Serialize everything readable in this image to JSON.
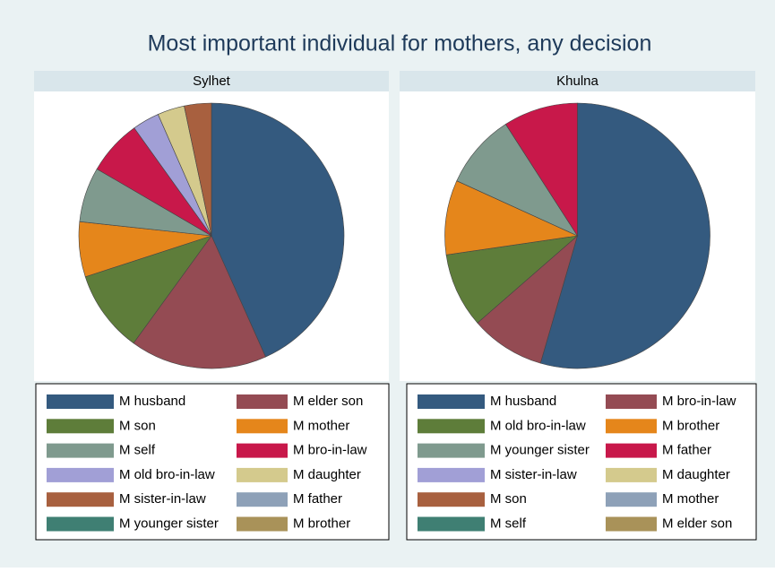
{
  "title": "Most important individual for mothers, any decision",
  "chart_data": [
    {
      "type": "pie",
      "title": "Sylhet",
      "categories": [
        "M husband",
        "M elder son",
        "M son",
        "M mother",
        "M self",
        "M bro-in-law",
        "M old bro-in-law",
        "M daughter",
        "M sister-in-law",
        "M father",
        "M younger sister",
        "M brother"
      ],
      "values": [
        43.3,
        16.7,
        10,
        6.7,
        6.7,
        6.7,
        3.3,
        3.3,
        3.3,
        0,
        0,
        0
      ],
      "colors": [
        "#345a7f",
        "#944b53",
        "#5e7d3a",
        "#e5861b",
        "#7f9a8e",
        "#c8184a",
        "#a19fd6",
        "#d4ca8d",
        "#a8603f",
        "#8ea1b8",
        "#3f7f73",
        "#a99259"
      ]
    },
    {
      "type": "pie",
      "title": "Khulna",
      "categories": [
        "M husband",
        "M bro-in-law",
        "M old bro-in-law",
        "M brother",
        "M younger sister",
        "M father",
        "M sister-in-law",
        "M daughter",
        "M son",
        "M mother",
        "M self",
        "M elder son"
      ],
      "values": [
        54.5,
        9.1,
        9.1,
        9.1,
        9.1,
        9.1,
        0,
        0,
        0,
        0,
        0,
        0
      ],
      "colors": [
        "#345a7f",
        "#944b53",
        "#5e7d3a",
        "#e5861b",
        "#7f9a8e",
        "#c8184a",
        "#a19fd6",
        "#d4ca8d",
        "#a8603f",
        "#8ea1b8",
        "#3f7f73",
        "#a99259"
      ]
    }
  ]
}
